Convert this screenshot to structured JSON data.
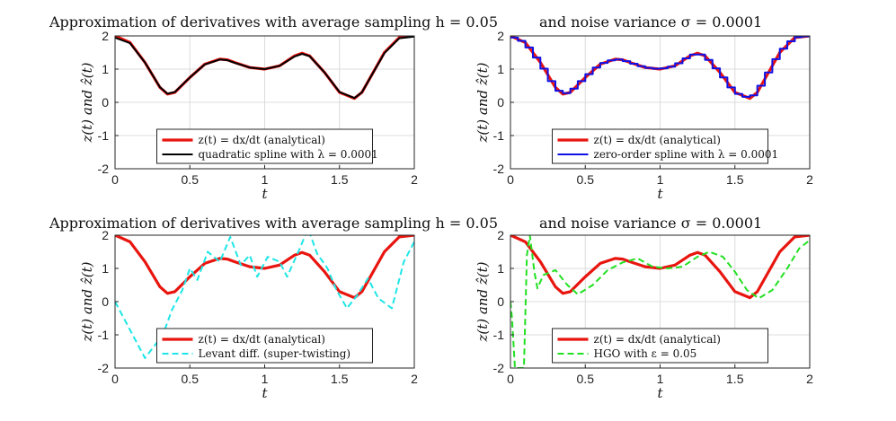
{
  "figure": {
    "row1_title_left": "Approximation of derivatives with average sampling h = 0.05",
    "row1_title_right": "and noise variance σ = 0.0001",
    "row2_title_left": "Approximation of derivatives with average sampling h = 0.05",
    "row2_title_right": "and noise variance σ = 0.0001"
  },
  "chart_data": [
    {
      "type": "line",
      "panel": "top-left",
      "xlabel": "t",
      "ylabel": "z(t) and ẑ(t)",
      "xlim": [
        0,
        2
      ],
      "ylim": [
        -2,
        2
      ],
      "xticks": [
        "0",
        "0.5",
        "1",
        "1.5",
        "2"
      ],
      "yticks": [
        "-2",
        "-1",
        "0",
        "1",
        "2"
      ],
      "grid": true,
      "legend_position": "bottom-center",
      "series": [
        {
          "name": "z(t) = dx/dt (analytical)",
          "color": "#e8150f",
          "style": "solid",
          "x": [
            0,
            0.1,
            0.2,
            0.3,
            0.35,
            0.4,
            0.5,
            0.6,
            0.7,
            0.75,
            0.8,
            0.9,
            1.0,
            1.1,
            1.2,
            1.25,
            1.3,
            1.4,
            1.5,
            1.6,
            1.65,
            1.7,
            1.8,
            1.9,
            2.0
          ],
          "y": [
            2.0,
            1.8,
            1.2,
            0.45,
            0.25,
            0.3,
            0.75,
            1.15,
            1.3,
            1.28,
            1.2,
            1.05,
            1.0,
            1.1,
            1.4,
            1.48,
            1.4,
            0.9,
            0.3,
            0.12,
            0.3,
            0.7,
            1.5,
            1.95,
            2.0
          ]
        },
        {
          "name": "quadratic spline with λ = 0.0001",
          "color": "#000000",
          "style": "solid",
          "x": [
            0,
            0.1,
            0.2,
            0.3,
            0.35,
            0.4,
            0.5,
            0.6,
            0.7,
            0.75,
            0.8,
            0.9,
            1.0,
            1.1,
            1.2,
            1.25,
            1.3,
            1.4,
            1.5,
            1.6,
            1.65,
            1.7,
            1.8,
            1.9,
            2.0
          ],
          "y": [
            1.95,
            1.78,
            1.2,
            0.46,
            0.26,
            0.31,
            0.75,
            1.14,
            1.29,
            1.27,
            1.19,
            1.05,
            1.0,
            1.1,
            1.38,
            1.46,
            1.39,
            0.9,
            0.31,
            0.13,
            0.3,
            0.7,
            1.48,
            1.93,
            1.98
          ]
        }
      ]
    },
    {
      "type": "line",
      "panel": "top-right",
      "xlabel": "t",
      "ylabel": "z(t) and ẑ(t)",
      "xlim": [
        0,
        2
      ],
      "ylim": [
        -2,
        2
      ],
      "xticks": [
        "0",
        "0.5",
        "1",
        "1.5",
        "2"
      ],
      "yticks": [
        "-2",
        "-1",
        "0",
        "1",
        "2"
      ],
      "grid": true,
      "legend_position": "bottom-center",
      "series": [
        {
          "name": "z(t) = dx/dt (analytical)",
          "color": "#e8150f",
          "style": "solid",
          "x": [
            0,
            0.1,
            0.2,
            0.3,
            0.35,
            0.4,
            0.5,
            0.6,
            0.7,
            0.75,
            0.8,
            0.9,
            1.0,
            1.1,
            1.2,
            1.25,
            1.3,
            1.4,
            1.5,
            1.6,
            1.65,
            1.7,
            1.8,
            1.9,
            2.0
          ],
          "y": [
            2.0,
            1.8,
            1.2,
            0.45,
            0.25,
            0.3,
            0.75,
            1.15,
            1.3,
            1.28,
            1.2,
            1.05,
            1.0,
            1.1,
            1.4,
            1.48,
            1.4,
            0.9,
            0.3,
            0.12,
            0.3,
            0.7,
            1.5,
            1.95,
            2.0
          ]
        },
        {
          "name": "zero-order spline with λ = 0.0001",
          "color": "#1010e6",
          "style": "steps",
          "step": 0.05
        }
      ]
    },
    {
      "type": "line",
      "panel": "bottom-left",
      "xlabel": "t",
      "ylabel": "z(t) and ẑ(t)",
      "xlim": [
        0,
        2
      ],
      "ylim": [
        -2,
        2
      ],
      "xticks": [
        "0",
        "0.5",
        "1",
        "1.5",
        "2"
      ],
      "yticks": [
        "-2",
        "-1",
        "0",
        "1",
        "2"
      ],
      "grid": false,
      "legend_position": "bottom-center",
      "series": [
        {
          "name": "z(t) = dx/dt (analytical)",
          "color": "#e8150f",
          "style": "solid",
          "x": [
            0,
            0.1,
            0.2,
            0.3,
            0.35,
            0.4,
            0.5,
            0.6,
            0.7,
            0.75,
            0.8,
            0.9,
            1.0,
            1.1,
            1.2,
            1.25,
            1.3,
            1.4,
            1.5,
            1.6,
            1.65,
            1.7,
            1.8,
            1.9,
            2.0
          ],
          "y": [
            2.0,
            1.8,
            1.2,
            0.45,
            0.25,
            0.3,
            0.75,
            1.15,
            1.3,
            1.28,
            1.2,
            1.05,
            1.0,
            1.1,
            1.4,
            1.48,
            1.4,
            0.9,
            0.3,
            0.12,
            0.3,
            0.7,
            1.5,
            1.95,
            2.0
          ]
        },
        {
          "name": "Levant diff. (super-twisting)",
          "color": "#1ee6e6",
          "style": "dashed",
          "x": [
            0,
            0.2,
            0.32,
            0.38,
            0.45,
            0.5,
            0.55,
            0.62,
            0.7,
            0.77,
            0.84,
            0.9,
            0.95,
            1.02,
            1.1,
            1.15,
            1.23,
            1.29,
            1.35,
            1.42,
            1.48,
            1.55,
            1.62,
            1.69,
            1.76,
            1.85,
            1.93,
            2.0
          ],
          "y": [
            0,
            -1.7,
            -1.0,
            -0.25,
            0.35,
            1.0,
            0.65,
            1.5,
            1.2,
            1.95,
            1.1,
            1.4,
            0.75,
            1.35,
            1.2,
            0.75,
            1.55,
            2.2,
            1.45,
            1.0,
            0.35,
            -0.2,
            0.2,
            0.7,
            0.1,
            -0.2,
            1.2,
            1.8
          ]
        }
      ]
    },
    {
      "type": "line",
      "panel": "bottom-right",
      "xlabel": "t",
      "ylabel": "z(t) and ẑ(t)",
      "xlim": [
        0,
        2
      ],
      "ylim": [
        -2,
        2
      ],
      "xticks": [
        "0",
        "0.5",
        "1",
        "1.5",
        "2"
      ],
      "yticks": [
        "-2",
        "-1",
        "0",
        "1",
        "2"
      ],
      "grid": true,
      "legend_position": "bottom-center",
      "series": [
        {
          "name": "z(t) = dx/dt (analytical)",
          "color": "#e8150f",
          "style": "solid",
          "x": [
            0,
            0.1,
            0.2,
            0.3,
            0.35,
            0.4,
            0.5,
            0.6,
            0.7,
            0.75,
            0.8,
            0.9,
            1.0,
            1.1,
            1.2,
            1.25,
            1.3,
            1.4,
            1.5,
            1.6,
            1.65,
            1.7,
            1.8,
            1.9,
            2.0
          ],
          "y": [
            2.0,
            1.8,
            1.2,
            0.45,
            0.25,
            0.3,
            0.75,
            1.15,
            1.3,
            1.28,
            1.2,
            1.05,
            1.0,
            1.1,
            1.4,
            1.48,
            1.4,
            0.9,
            0.3,
            0.12,
            0.3,
            0.7,
            1.5,
            1.95,
            2.0
          ]
        },
        {
          "name": "HGO with ε = 0.05",
          "color": "#22e022",
          "style": "dashed",
          "x": [
            0,
            0.01,
            0.03,
            0.06,
            0.09,
            0.11,
            0.13,
            0.16,
            0.18,
            0.22,
            0.3,
            0.38,
            0.45,
            0.55,
            0.65,
            0.75,
            0.85,
            0.95,
            1.05,
            1.15,
            1.25,
            1.33,
            1.42,
            1.5,
            1.58,
            1.66,
            1.75,
            1.85,
            1.93,
            2.0
          ],
          "y": [
            0,
            -0.5,
            -2.0,
            -2.0,
            -2.0,
            1.4,
            2.0,
            0.9,
            0.4,
            0.8,
            0.95,
            0.5,
            0.22,
            0.5,
            0.95,
            1.18,
            1.3,
            1.05,
            1.0,
            1.05,
            1.35,
            1.5,
            1.35,
            0.9,
            0.35,
            0.1,
            0.35,
            1.0,
            1.6,
            1.85
          ]
        }
      ]
    }
  ]
}
